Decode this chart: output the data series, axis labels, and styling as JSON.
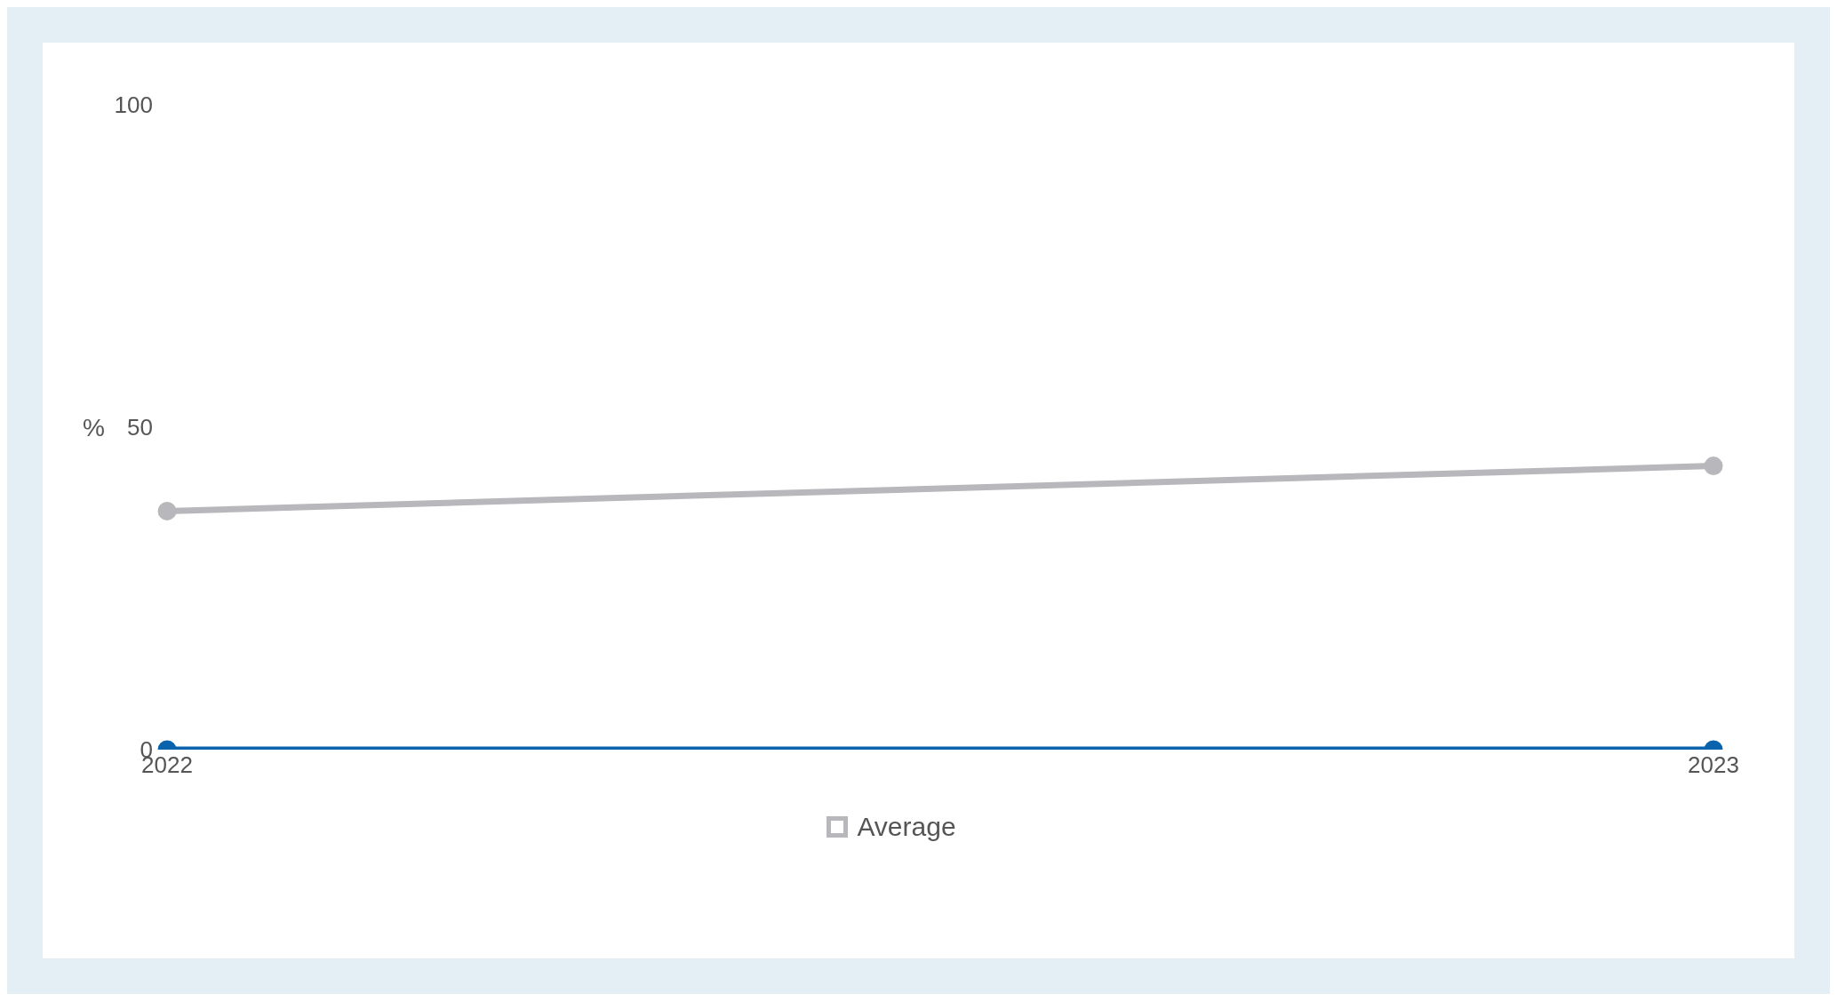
{
  "chart_data": {
    "type": "line",
    "ylabel": "%",
    "categories": [
      "2022",
      "2023"
    ],
    "series": [
      {
        "color": "#0a64ad",
        "values": [
          0,
          0
        ]
      },
      {
        "name": "Average",
        "color": "#b8b8bc",
        "values": [
          37,
          44
        ]
      }
    ],
    "ylim": [
      0,
      100
    ],
    "yticks": [
      0,
      50,
      100
    ],
    "grid": false,
    "legend": "bottom",
    "marker": "circle",
    "line_style": "solid"
  }
}
